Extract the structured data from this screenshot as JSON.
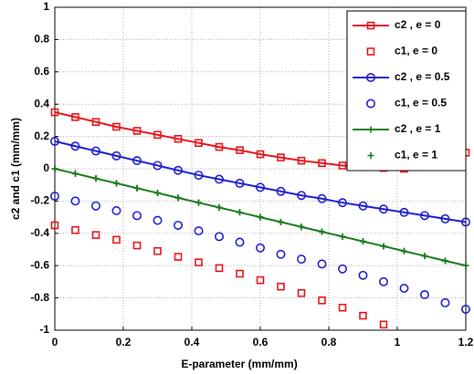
{
  "chart_data": {
    "type": "line",
    "xlabel": "E-parameter (mm/mm)",
    "ylabel": "c2 and c1 (mm/mm)",
    "x": [
      0,
      0.06,
      0.12,
      0.18,
      0.24,
      0.3,
      0.36,
      0.42,
      0.48,
      0.54,
      0.6,
      0.66,
      0.72,
      0.78,
      0.84,
      0.9,
      0.96,
      1.02,
      1.08,
      1.14,
      1.2
    ],
    "xlim": [
      0,
      1.2
    ],
    "xticks": [
      0,
      0.2,
      0.4,
      0.6,
      0.8,
      1,
      1.2
    ],
    "ylim": [
      -1,
      1
    ],
    "yticks": [
      -1,
      -0.8,
      -0.6,
      -0.4,
      -0.2,
      0,
      0.2,
      0.4,
      0.6,
      0.8,
      1
    ],
    "grid": true,
    "legend": "upper right",
    "series": [
      {
        "name": "c2 , e = 0",
        "color": "#e8141b",
        "line": true,
        "marker": "square",
        "values": [
          0.35,
          0.32,
          0.29,
          0.26,
          0.235,
          0.21,
          0.185,
          0.16,
          0.135,
          0.115,
          0.09,
          0.07,
          0.05,
          0.035,
          0.02,
          0.01,
          0.005,
          0.0,
          0.01,
          0.035,
          0.1
        ]
      },
      {
        "name": "c1, e = 0",
        "color": "#e8141b",
        "line": false,
        "marker": "square",
        "values": [
          -0.35,
          -0.38,
          -0.41,
          -0.44,
          -0.475,
          -0.51,
          -0.545,
          -0.58,
          -0.615,
          -0.65,
          -0.69,
          -0.73,
          -0.77,
          -0.815,
          -0.86,
          -0.91,
          -0.965,
          null,
          null,
          null,
          null
        ]
      },
      {
        "name": "c2 , e = 0.5",
        "color": "#1f1fd0",
        "line": true,
        "marker": "circle",
        "values": [
          0.17,
          0.14,
          0.11,
          0.08,
          0.05,
          0.02,
          -0.01,
          -0.04,
          -0.065,
          -0.09,
          -0.115,
          -0.14,
          -0.165,
          -0.185,
          -0.21,
          -0.23,
          -0.25,
          -0.27,
          -0.29,
          -0.31,
          -0.33
        ]
      },
      {
        "name": "c1, e = 0.5",
        "color": "#1f1fd0",
        "line": false,
        "marker": "circle",
        "values": [
          -0.17,
          -0.2,
          -0.23,
          -0.26,
          -0.29,
          -0.32,
          -0.35,
          -0.385,
          -0.42,
          -0.455,
          -0.49,
          -0.53,
          -0.56,
          -0.59,
          -0.62,
          -0.66,
          -0.7,
          -0.74,
          -0.78,
          -0.83,
          -0.87
        ]
      },
      {
        "name": "c2 , e = 1",
        "color": "#1a7a1a",
        "line": true,
        "marker": "plus",
        "values": [
          0,
          -0.03,
          -0.06,
          -0.09,
          -0.12,
          -0.15,
          -0.18,
          -0.21,
          -0.24,
          -0.27,
          -0.3,
          -0.33,
          -0.36,
          -0.39,
          -0.42,
          -0.45,
          -0.48,
          -0.51,
          -0.54,
          -0.57,
          -0.6
        ]
      },
      {
        "name": "c1, e = 1",
        "color": "#1a7a1a",
        "line": false,
        "marker": "plus",
        "values": [
          0,
          -0.03,
          -0.06,
          -0.09,
          -0.12,
          -0.15,
          -0.18,
          -0.21,
          -0.24,
          -0.27,
          -0.3,
          -0.33,
          -0.36,
          -0.39,
          -0.42,
          -0.45,
          -0.48,
          -0.51,
          -0.54,
          -0.57,
          -0.6
        ]
      }
    ]
  }
}
